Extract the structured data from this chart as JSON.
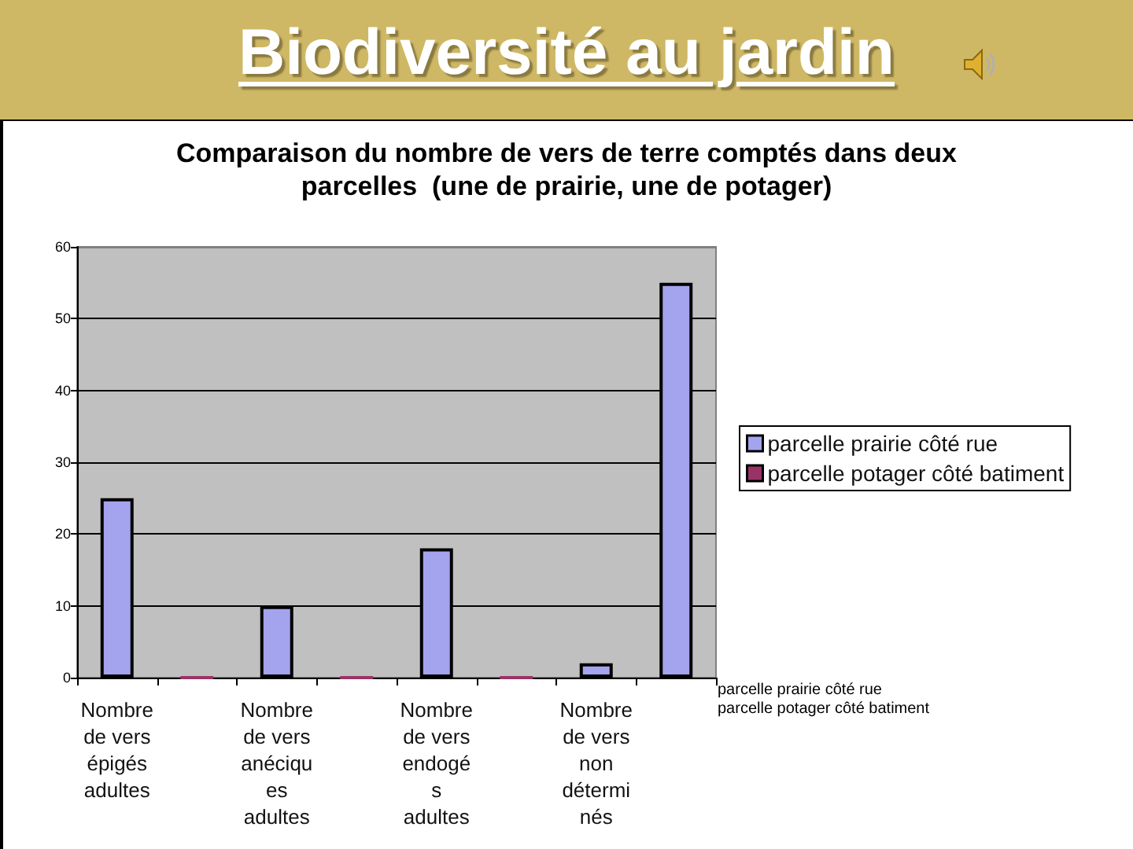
{
  "chart_data": {
    "type": "bar",
    "title": "Biodiversité au jardin",
    "subtitle": "Comparaison du nombre de vers de terre comptés dans deux parcelles  (une de prairie, une de potager)",
    "categories": [
      "Nombre de vers épigés adultes",
      null,
      "Nombre de vers anéciques adultes",
      null,
      "Nombre de vers endogés adultes",
      null,
      "Nombre de vers non déterminés",
      null
    ],
    "series": [
      {
        "name": "parcelle prairie côté rue",
        "color": "#a3a3ee",
        "values": [
          25,
          null,
          10,
          null,
          18,
          null,
          2,
          55
        ]
      },
      {
        "name": "parcelle potager côté batiment",
        "color": "#993366",
        "values": [
          null,
          0,
          null,
          0,
          null,
          0,
          null,
          null
        ]
      }
    ],
    "stacked": true,
    "ylim": [
      0,
      60
    ],
    "yticks": [
      0,
      10,
      20,
      30,
      40,
      50,
      60
    ],
    "grid": "y",
    "legend": "right",
    "annotations": [
      "parcelle prairie côté rue",
      "parcelle potager côté batiment"
    ]
  }
}
